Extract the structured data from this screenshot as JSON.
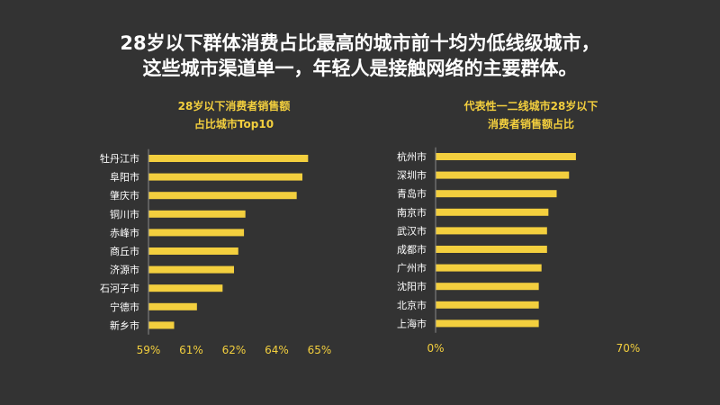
{
  "headline": {
    "line1": "28岁以下群体消费占比最高的城市前十均为低线级城市，",
    "line2": "这些城市渠道单一，年轻人是接触网络的主要群体。"
  },
  "colors": {
    "bar": "#f3cf3e",
    "title": "#f3cf3e",
    "text": "#ffffff",
    "background": "#333333"
  },
  "chart_data": [
    {
      "type": "bar",
      "orientation": "horizontal",
      "title_line1": "28岁以下消费者销售额",
      "title_line2": "占比城市Top10",
      "categories": [
        "牡丹江市",
        "阜阳市",
        "肇庆市",
        "铜川市",
        "赤峰市",
        "商丘市",
        "济源市",
        "石河子市",
        "宁德市",
        "新乡市"
      ],
      "values": [
        64.6,
        64.4,
        64.2,
        62.4,
        62.35,
        62.15,
        62.0,
        61.6,
        60.7,
        59.9
      ],
      "xticks": [
        "59%",
        "61%",
        "62%",
        "64%",
        "65%"
      ],
      "xlim": [
        59,
        65
      ],
      "grid": false,
      "legend": "none"
    },
    {
      "type": "bar",
      "orientation": "horizontal",
      "title_line1": "代表性一二线城市28岁以下",
      "title_line2": "消费者销售额占比",
      "categories": [
        "杭州市",
        "深圳市",
        "青岛市",
        "南京市",
        "武汉市",
        "成都市",
        "广州市",
        "沈阳市",
        "北京市",
        "上海市"
      ],
      "values": [
        51,
        48.5,
        44,
        41,
        40.5,
        40.5,
        38.5,
        37.5,
        37.5,
        37.5
      ],
      "xticks": [
        "0%",
        "70%"
      ],
      "xlim": [
        0,
        70
      ],
      "grid": false,
      "legend": "none"
    }
  ]
}
